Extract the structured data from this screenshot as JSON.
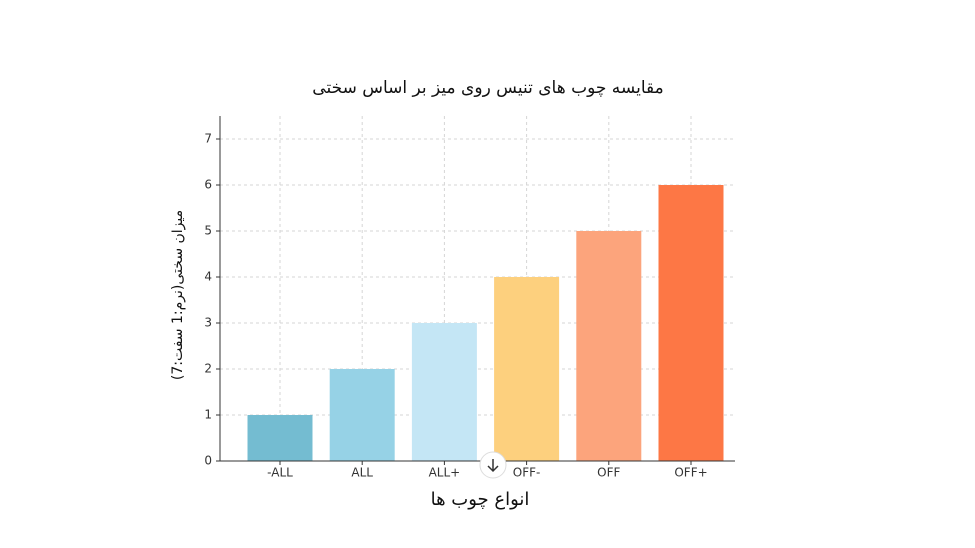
{
  "chart_data": {
    "type": "bar",
    "title": "مقایسه چوب های تنیس روی میز بر اساس سختی",
    "x_label": "انواع چوب ها",
    "y_label": "میزان سختی(نرم:1 سفت:7)",
    "categories": [
      "-ALL",
      "ALL",
      "ALL+",
      "OFF-",
      "OFF",
      "OFF+"
    ],
    "values": [
      1,
      2,
      3,
      4,
      5,
      6
    ],
    "colors": [
      "#74bcd1",
      "#96d2e6",
      "#c4e6f5",
      "#fdd07e",
      "#fca47c",
      "#fd7745"
    ],
    "ylim": [
      0,
      7.5
    ],
    "yticks": [
      0,
      1,
      2,
      3,
      4,
      5,
      6,
      7
    ],
    "grid": true
  }
}
